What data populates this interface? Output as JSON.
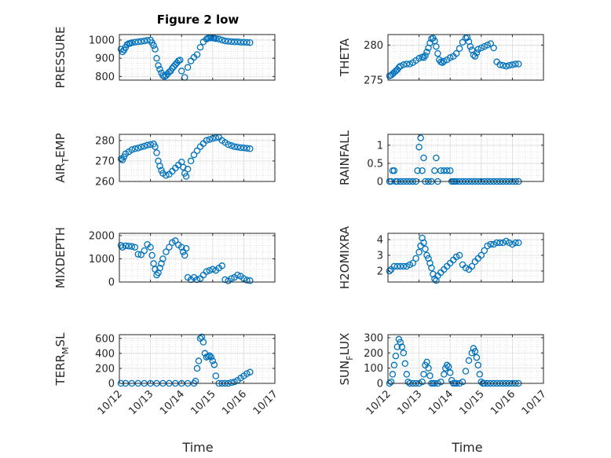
{
  "figure": {
    "title": "Figure 2 low"
  },
  "colors": {
    "marker": "#0072BD",
    "axis": "#262626",
    "grid": "#c8c8c8",
    "background": "#ffffff"
  },
  "chart_data": [
    {
      "type": "scatter",
      "ylabel": "PRESSURE",
      "title": "Figure 2 low",
      "xlim": [
        0,
        5
      ],
      "ylim": [
        780,
        1030
      ],
      "yticks": [
        800,
        900,
        1000
      ],
      "grid": true,
      "series": [
        {
          "marker": "circle",
          "x": [
            0.05,
            0.1,
            0.15,
            0.2,
            0.25,
            0.3,
            0.35,
            0.4,
            0.5,
            0.6,
            0.7,
            0.8,
            0.9,
            1.0,
            1.05,
            1.1,
            1.15,
            1.2,
            1.25,
            1.3,
            1.35,
            1.4,
            1.45,
            1.5,
            1.55,
            1.6,
            1.65,
            1.7,
            1.75,
            1.8,
            1.85,
            1.9,
            1.95,
            2.0,
            2.1,
            2.2,
            2.3,
            2.4,
            2.5,
            2.6,
            2.7,
            2.8,
            2.85,
            2.9,
            2.95,
            3.0,
            3.05,
            3.1,
            3.2,
            3.3,
            3.4,
            3.5,
            3.6,
            3.7,
            3.8,
            3.9,
            4.0,
            4.1,
            4.2
          ],
          "y": [
            950,
            935,
            945,
            960,
            975,
            980,
            982,
            985,
            988,
            990,
            992,
            995,
            998,
            1000,
            985,
            970,
            950,
            900,
            860,
            840,
            820,
            805,
            800,
            805,
            815,
            825,
            830,
            845,
            855,
            865,
            875,
            885,
            890,
            830,
            795,
            850,
            885,
            905,
            920,
            960,
            990,
            1005,
            1010,
            1012,
            1012,
            1012,
            1010,
            1008,
            1005,
            1000,
            995,
            993,
            991,
            990,
            990,
            988,
            988,
            987,
            986
          ]
        }
      ]
    },
    {
      "type": "scatter",
      "ylabel": "THETA",
      "xlim": [
        0,
        5
      ],
      "ylim": [
        275,
        281.5
      ],
      "yticks": [
        275,
        280
      ],
      "grid": true,
      "series": [
        {
          "marker": "circle",
          "x": [
            0.05,
            0.1,
            0.15,
            0.2,
            0.25,
            0.3,
            0.35,
            0.4,
            0.5,
            0.6,
            0.7,
            0.8,
            0.9,
            1.0,
            1.1,
            1.15,
            1.2,
            1.25,
            1.3,
            1.35,
            1.4,
            1.45,
            1.5,
            1.55,
            1.6,
            1.65,
            1.7,
            1.75,
            1.8,
            1.9,
            2.0,
            2.1,
            2.2,
            2.3,
            2.4,
            2.5,
            2.55,
            2.6,
            2.65,
            2.7,
            2.75,
            2.8,
            2.85,
            2.9,
            3.0,
            3.1,
            3.2,
            3.3,
            3.4,
            3.5,
            3.6,
            3.7,
            3.8,
            3.9,
            4.0,
            4.1,
            4.2
          ],
          "y": [
            275.6,
            275.7,
            275.9,
            276.1,
            276.3,
            276.5,
            276.8,
            277.0,
            277.2,
            277.3,
            277.3,
            277.5,
            277.8,
            278.1,
            278.3,
            278.2,
            278.5,
            279.0,
            279.6,
            280.3,
            280.9,
            281.0,
            280.6,
            279.8,
            278.8,
            277.9,
            277.6,
            277.5,
            277.7,
            277.9,
            278.2,
            278.4,
            278.8,
            279.5,
            280.4,
            281.0,
            281.1,
            280.5,
            279.8,
            279.3,
            278.6,
            278.4,
            278.9,
            279.4,
            279.6,
            279.8,
            280.0,
            280.2,
            279.6,
            277.6,
            277.2,
            277.1,
            277.0,
            277.1,
            277.2,
            277.3,
            277.3
          ]
        }
      ]
    },
    {
      "type": "scatter",
      "ylabel": "AIR_TEMP",
      "xlim": [
        0,
        5
      ],
      "ylim": [
        260,
        283
      ],
      "yticks": [
        260,
        270,
        280
      ],
      "grid": true,
      "series": [
        {
          "marker": "circle",
          "x": [
            0.05,
            0.1,
            0.15,
            0.2,
            0.3,
            0.4,
            0.5,
            0.6,
            0.7,
            0.8,
            0.9,
            1.0,
            1.1,
            1.15,
            1.2,
            1.25,
            1.3,
            1.35,
            1.4,
            1.5,
            1.6,
            1.7,
            1.8,
            1.9,
            2.0,
            2.05,
            2.1,
            2.15,
            2.2,
            2.3,
            2.4,
            2.5,
            2.6,
            2.7,
            2.8,
            2.9,
            3.0,
            3.1,
            3.2,
            3.3,
            3.4,
            3.5,
            3.6,
            3.7,
            3.8,
            3.9,
            4.0,
            4.1,
            4.2
          ],
          "y": [
            271,
            270.5,
            272,
            273.5,
            274.5,
            275.5,
            276,
            276.3,
            276.8,
            277.2,
            277.7,
            278,
            278.3,
            277,
            274,
            270,
            267.5,
            265.5,
            264,
            263,
            263.5,
            265,
            266.5,
            268,
            269.5,
            267,
            264,
            262.5,
            266,
            270,
            273,
            275,
            277,
            278.5,
            280,
            280.5,
            281,
            281.3,
            281.5,
            280,
            279,
            278,
            277.5,
            277,
            276.8,
            276.5,
            276.4,
            276.2,
            276
          ]
        }
      ]
    },
    {
      "type": "scatter",
      "ylabel": "RAINFALL",
      "xlim": [
        0,
        5
      ],
      "ylim": [
        0,
        1.3
      ],
      "yticks": [
        0,
        0.5,
        1
      ],
      "grid": true,
      "series": [
        {
          "marker": "circle",
          "x": [
            0.05,
            0.1,
            0.15,
            0.2,
            0.25,
            0.3,
            0.4,
            0.5,
            0.6,
            0.7,
            0.8,
            0.9,
            0.95,
            1.0,
            1.05,
            1.1,
            1.15,
            1.2,
            1.3,
            1.4,
            1.5,
            1.55,
            1.6,
            1.7,
            1.8,
            1.9,
            2.0,
            2.05,
            2.1,
            2.15,
            2.2,
            2.3,
            2.4,
            2.5,
            2.6,
            2.7,
            2.8,
            2.9,
            3.0,
            3.1,
            3.2,
            3.3,
            3.4,
            3.5,
            3.6,
            3.7,
            3.8,
            3.9,
            4.0,
            4.1,
            4.2
          ],
          "y": [
            0,
            0,
            0.3,
            0.3,
            0,
            0,
            0,
            0,
            0,
            0,
            0,
            0,
            0.3,
            0.95,
            1.2,
            0.3,
            0.65,
            0,
            0,
            0,
            0.3,
            0.65,
            0,
            0.3,
            0.3,
            0.3,
            0.3,
            0,
            0,
            0,
            0,
            0,
            0,
            0,
            0,
            0,
            0,
            0,
            0,
            0,
            0,
            0,
            0,
            0,
            0,
            0,
            0,
            0,
            0,
            0,
            0
          ]
        }
      ]
    },
    {
      "type": "scatter",
      "ylabel": "MIXDEPTH",
      "xlim": [
        0,
        5
      ],
      "ylim": [
        0,
        2100
      ],
      "yticks": [
        0,
        1000,
        2000
      ],
      "grid": true,
      "series": [
        {
          "marker": "circle",
          "x": [
            0.05,
            0.1,
            0.2,
            0.3,
            0.4,
            0.5,
            0.6,
            0.7,
            0.8,
            0.9,
            1.0,
            1.05,
            1.1,
            1.15,
            1.2,
            1.25,
            1.3,
            1.35,
            1.4,
            1.5,
            1.6,
            1.7,
            1.8,
            1.9,
            2.0,
            2.05,
            2.1,
            2.15,
            2.2,
            2.3,
            2.4,
            2.5,
            2.6,
            2.7,
            2.8,
            2.9,
            3.0,
            3.1,
            3.2,
            3.3,
            3.4,
            3.5,
            3.6,
            3.7,
            3.8,
            3.9,
            4.0,
            4.1,
            4.2
          ],
          "y": [
            1580,
            1500,
            1560,
            1550,
            1530,
            1500,
            1200,
            1180,
            1350,
            1620,
            1500,
            1150,
            800,
            550,
            300,
            400,
            600,
            800,
            1000,
            1300,
            1500,
            1700,
            1780,
            1600,
            1500,
            1300,
            1150,
            1450,
            200,
            100,
            200,
            100,
            150,
            300,
            450,
            500,
            550,
            500,
            600,
            700,
            100,
            50,
            150,
            200,
            300,
            250,
            150,
            80,
            60
          ]
        }
      ]
    },
    {
      "type": "scatter",
      "ylabel": "H2OMIXRA",
      "xlim": [
        0,
        5
      ],
      "ylim": [
        1.3,
        4.4
      ],
      "yticks": [
        2,
        3,
        4
      ],
      "grid": true,
      "series": [
        {
          "marker": "circle",
          "x": [
            0.05,
            0.1,
            0.2,
            0.3,
            0.4,
            0.5,
            0.6,
            0.7,
            0.8,
            0.9,
            1.0,
            1.05,
            1.1,
            1.15,
            1.2,
            1.25,
            1.3,
            1.35,
            1.4,
            1.45,
            1.5,
            1.55,
            1.6,
            1.7,
            1.8,
            1.9,
            2.0,
            2.1,
            2.2,
            2.3,
            2.4,
            2.5,
            2.6,
            2.7,
            2.8,
            2.9,
            3.0,
            3.1,
            3.2,
            3.3,
            3.4,
            3.5,
            3.6,
            3.7,
            3.8,
            3.9,
            4.0,
            4.1,
            4.2
          ],
          "y": [
            2.0,
            2.1,
            2.3,
            2.3,
            2.3,
            2.3,
            2.3,
            2.4,
            2.5,
            2.8,
            3.2,
            3.6,
            4.1,
            3.8,
            3.4,
            3.0,
            2.8,
            2.5,
            2.2,
            1.8,
            1.5,
            1.4,
            1.7,
            1.9,
            2.1,
            2.3,
            2.5,
            2.7,
            2.9,
            3.0,
            2.4,
            2.2,
            2.1,
            2.3,
            2.6,
            2.8,
            3.0,
            3.3,
            3.6,
            3.7,
            3.7,
            3.8,
            3.8,
            3.8,
            3.9,
            3.8,
            3.7,
            3.8,
            3.8
          ]
        }
      ]
    },
    {
      "type": "scatter",
      "ylabel": "TERR_MSL",
      "xlim": [
        0,
        5
      ],
      "ylim": [
        0,
        650
      ],
      "yticks": [
        0,
        200,
        400,
        600
      ],
      "grid": true,
      "series": [
        {
          "marker": "circle",
          "x": [
            0.05,
            0.2,
            0.4,
            0.6,
            0.8,
            1.0,
            1.2,
            1.4,
            1.6,
            1.8,
            2.0,
            2.2,
            2.4,
            2.45,
            2.5,
            2.55,
            2.6,
            2.65,
            2.7,
            2.75,
            2.8,
            2.85,
            2.9,
            2.95,
            3.0,
            3.05,
            3.1,
            3.2,
            3.3,
            3.4,
            3.5,
            3.6,
            3.7,
            3.8,
            3.9,
            4.0,
            4.1,
            4.2
          ],
          "y": [
            0,
            0,
            0,
            0,
            0,
            0,
            0,
            0,
            0,
            0,
            0,
            0,
            0,
            30,
            200,
            300,
            600,
            620,
            550,
            400,
            350,
            360,
            370,
            350,
            300,
            250,
            100,
            0,
            0,
            0,
            0,
            10,
            20,
            40,
            70,
            100,
            130,
            150
          ]
        }
      ]
    },
    {
      "type": "scatter",
      "ylabel": "SUN_FLUX",
      "xlim": [
        0,
        5
      ],
      "ylim": [
        0,
        320
      ],
      "yticks": [
        0,
        100,
        200,
        300
      ],
      "grid": true,
      "series": [
        {
          "marker": "circle",
          "x": [
            0.05,
            0.1,
            0.15,
            0.2,
            0.25,
            0.3,
            0.35,
            0.4,
            0.45,
            0.5,
            0.55,
            0.6,
            0.65,
            0.7,
            0.8,
            0.9,
            1.0,
            1.1,
            1.15,
            1.2,
            1.25,
            1.3,
            1.35,
            1.4,
            1.45,
            1.5,
            1.6,
            1.7,
            1.8,
            1.85,
            1.9,
            1.95,
            2.0,
            2.05,
            2.1,
            2.15,
            2.2,
            2.3,
            2.4,
            2.5,
            2.6,
            2.7,
            2.75,
            2.8,
            2.85,
            2.9,
            2.95,
            3.0,
            3.05,
            3.1,
            3.2,
            3.3,
            3.4,
            3.5,
            3.6,
            3.7,
            3.8,
            3.9,
            4.0,
            4.1,
            4.2
          ],
          "y": [
            0,
            10,
            60,
            120,
            180,
            240,
            290,
            270,
            240,
            200,
            130,
            60,
            10,
            0,
            0,
            0,
            0,
            10,
            60,
            120,
            140,
            100,
            50,
            0,
            0,
            0,
            0,
            10,
            60,
            100,
            120,
            110,
            70,
            20,
            0,
            0,
            0,
            0,
            10,
            80,
            150,
            200,
            230,
            210,
            170,
            120,
            60,
            10,
            0,
            0,
            0,
            0,
            0,
            0,
            0,
            0,
            0,
            0,
            0,
            0,
            0
          ]
        }
      ]
    }
  ],
  "x_axis": {
    "tick_labels": [
      "10/12",
      "10/13",
      "10/14",
      "10/15",
      "10/16",
      "10/17"
    ],
    "label": "Time"
  },
  "panels": [
    {
      "ylabel_main": "PRESSURE",
      "ylabel_sub": "",
      "ylabel_tail": ""
    },
    {
      "ylabel_main": "THETA",
      "ylabel_sub": "",
      "ylabel_tail": ""
    },
    {
      "ylabel_main": "AIR",
      "ylabel_sub": "T",
      "ylabel_tail": "EMP"
    },
    {
      "ylabel_main": "RAINFALL",
      "ylabel_sub": "",
      "ylabel_tail": ""
    },
    {
      "ylabel_main": "MIXDEPTH",
      "ylabel_sub": "",
      "ylabel_tail": ""
    },
    {
      "ylabel_main": "H2OMIXRA",
      "ylabel_sub": "",
      "ylabel_tail": ""
    },
    {
      "ylabel_main": "TERR",
      "ylabel_sub": "M",
      "ylabel_tail": "SL"
    },
    {
      "ylabel_main": "SUN",
      "ylabel_sub": "F",
      "ylabel_tail": "LUX"
    }
  ]
}
